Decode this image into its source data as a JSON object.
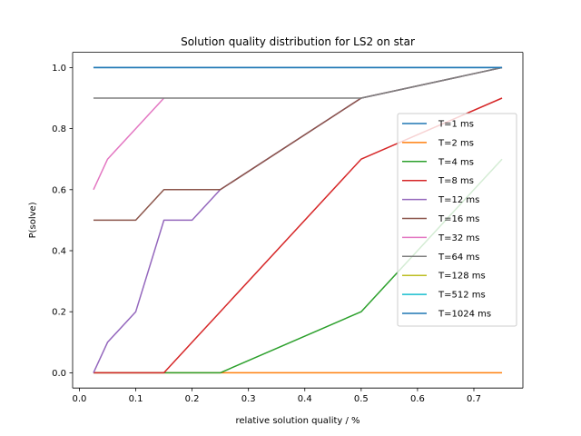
{
  "chart_data": {
    "type": "line",
    "title": "Solution quality distribution for LS2 on star",
    "xlabel": "relative solution quality / %",
    "ylabel": "P(solve)",
    "xlim": [
      -0.012,
      0.787
    ],
    "ylim": [
      -0.05,
      1.05
    ],
    "xticks": [
      0.0,
      0.1,
      0.2,
      0.3,
      0.4,
      0.5,
      0.6,
      0.7
    ],
    "xtick_labels": [
      "0.0",
      "0.1",
      "0.2",
      "0.3",
      "0.4",
      "0.5",
      "0.6",
      "0.7"
    ],
    "yticks": [
      0.0,
      0.2,
      0.4,
      0.6,
      0.8,
      1.0
    ],
    "ytick_labels": [
      "0.0",
      "0.2",
      "0.4",
      "0.6",
      "0.8",
      "1.0"
    ],
    "grid": false,
    "legend_position": "center-right",
    "series": [
      {
        "name": "T=1 ms",
        "color": "#1f77b4",
        "x": [
          0.025,
          0.05,
          0.1,
          0.15,
          0.2,
          0.25,
          0.5,
          0.75
        ],
        "y": [
          1.0,
          1.0,
          1.0,
          1.0,
          1.0,
          1.0,
          1.0,
          1.0
        ]
      },
      {
        "name": "T=2 ms",
        "color": "#ff7f0e",
        "x": [
          0.025,
          0.05,
          0.1,
          0.15,
          0.2,
          0.25,
          0.5,
          0.75
        ],
        "y": [
          0.0,
          0.0,
          0.0,
          0.0,
          0.0,
          0.0,
          0.0,
          0.0
        ]
      },
      {
        "name": "T=4 ms",
        "color": "#2ca02c",
        "x": [
          0.025,
          0.05,
          0.1,
          0.15,
          0.2,
          0.25,
          0.5,
          0.75
        ],
        "y": [
          0.0,
          0.0,
          0.0,
          0.0,
          0.0,
          0.0,
          0.2,
          0.7
        ]
      },
      {
        "name": "T=8 ms",
        "color": "#d62728",
        "x": [
          0.025,
          0.05,
          0.1,
          0.15,
          0.2,
          0.25,
          0.5,
          0.75
        ],
        "y": [
          0.0,
          0.0,
          0.0,
          0.0,
          0.1,
          0.2,
          0.7,
          0.9
        ]
      },
      {
        "name": "T=12 ms",
        "color": "#9467bd",
        "x": [
          0.025,
          0.05,
          0.1,
          0.15,
          0.2,
          0.25,
          0.5,
          0.75
        ],
        "y": [
          0.0,
          0.1,
          0.2,
          0.5,
          0.5,
          0.6,
          0.9,
          1.0
        ]
      },
      {
        "name": "T=16 ms",
        "color": "#8c564b",
        "x": [
          0.025,
          0.05,
          0.1,
          0.15,
          0.2,
          0.25,
          0.5,
          0.75
        ],
        "y": [
          0.5,
          0.5,
          0.5,
          0.6,
          0.6,
          0.6,
          0.9,
          1.0
        ]
      },
      {
        "name": "T=32 ms",
        "color": "#e377c2",
        "x": [
          0.025,
          0.05,
          0.1,
          0.15
        ],
        "y": [
          0.6,
          0.7,
          0.8,
          0.9
        ]
      },
      {
        "name": "T=64 ms",
        "color": "#7f7f7f",
        "x": [
          0.025,
          0.05,
          0.1,
          0.15,
          0.2,
          0.25,
          0.5,
          0.75
        ],
        "y": [
          0.9,
          0.9,
          0.9,
          0.9,
          0.9,
          0.9,
          0.9,
          1.0
        ]
      },
      {
        "name": "T=128 ms",
        "color": "#bcbd22",
        "x": [],
        "y": []
      },
      {
        "name": "T=512 ms",
        "color": "#17becf",
        "x": [],
        "y": []
      },
      {
        "name": "T=1024 ms",
        "color": "#1f77b4",
        "x": [
          0.025,
          0.75
        ],
        "y": [
          1.0,
          1.0
        ]
      }
    ]
  }
}
